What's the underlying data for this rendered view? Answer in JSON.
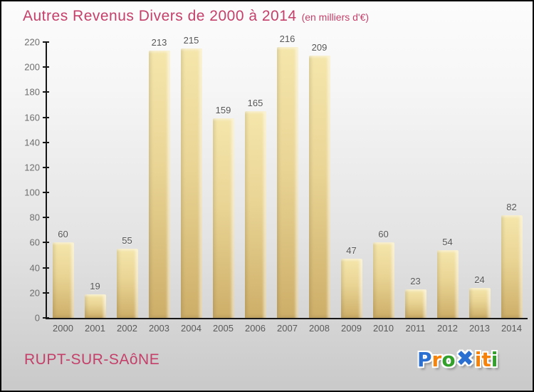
{
  "header": {
    "title": "Autres Revenus Divers de 2000 à 2014",
    "subtitle": "(en milliers d'€)"
  },
  "footer": {
    "commune": "RUPT-SUR-SAôNE",
    "brand": "Proxiti",
    "logo_letters": [
      {
        "ch": "P",
        "glyph": "P",
        "color": "#2b6fd0"
      },
      {
        "ch": "r",
        "glyph": "r",
        "color": "#f5820b"
      },
      {
        "ch": "o",
        "glyph": "o",
        "color": "#33a02c"
      },
      {
        "ch": "x",
        "glyph": "✖",
        "color": "#2b6fd0",
        "x_mark": true
      },
      {
        "ch": "i",
        "glyph": "i",
        "color": "#f5820b"
      },
      {
        "ch": "t",
        "glyph": "t",
        "color": "#f5820b"
      },
      {
        "ch": "i",
        "glyph": "i",
        "color": "#33a02c"
      }
    ]
  },
  "colors": {
    "title_pink": "#c4406b",
    "bar_top": "#f5e6ab",
    "bar_bottom": "#cdae68",
    "axis": "#161616",
    "tick_label": "#6e6e6e",
    "value_label": "#565656",
    "background_top": "#fcfcfc",
    "background_bottom": "#c9c9c9"
  },
  "chart_data": {
    "type": "bar",
    "title": "Autres Revenus Divers de 2000 à 2014 (en milliers d'€)",
    "xlabel": "",
    "ylabel": "",
    "categories": [
      "2000",
      "2001",
      "2002",
      "2003",
      "2004",
      "2005",
      "2006",
      "2007",
      "2008",
      "2009",
      "2010",
      "2011",
      "2012",
      "2013",
      "2014"
    ],
    "values": [
      60,
      19,
      55,
      213,
      215,
      159,
      165,
      216,
      209,
      47,
      60,
      23,
      54,
      24,
      82
    ],
    "ylim": [
      0,
      220
    ],
    "ytick_step": 20,
    "grid": false,
    "legend": false,
    "data_labels": true
  }
}
